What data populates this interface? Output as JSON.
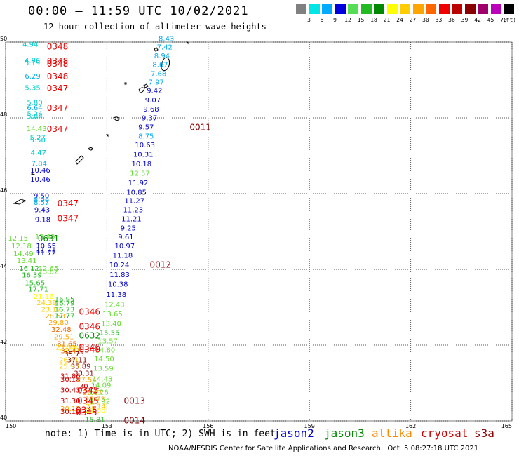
{
  "header": {
    "title": "00:00 – 11:59 UTC 10/02/2021",
    "subtitle": "12 hour collection of altimeter wave heights"
  },
  "colorbar": {
    "unit": "(ft)",
    "colors": [
      "#808080",
      "#00e5e5",
      "#00aaff",
      "#0000dd",
      "#55dd55",
      "#22bb22",
      "#008800",
      "#ffff00",
      "#ffcc00",
      "#ffa500",
      "#ff6600",
      "#ee0000",
      "#bb0000",
      "#880000",
      "#a0006a",
      "#bb00bb",
      "#000000"
    ],
    "labels": [
      "3",
      "6",
      "9",
      "12",
      "15",
      "18",
      "21",
      "24",
      "27",
      "30",
      "33",
      "36",
      "39",
      "42",
      "45",
      "70"
    ]
  },
  "axes": {
    "lon_labels": [
      "150",
      "153",
      "156",
      "159",
      "162",
      "165"
    ],
    "lat_labels": [
      "50",
      "48",
      "46",
      "44",
      "42",
      "40"
    ]
  },
  "series_colors": {
    "jason2": "#0000cc",
    "jason3": "#008800",
    "altika": "#ff8800",
    "cryosat": "#cc0000",
    "s3a": "#880000"
  },
  "observations": [
    {
      "t": "4.94",
      "c": "#00cccc",
      "lon": 150.5,
      "lat": 49.95
    },
    {
      "t": "4.86",
      "c": "#00cccc",
      "lon": 150.56,
      "lat": 49.53
    },
    {
      "t": "5.19",
      "c": "#00cccc",
      "lon": 150.56,
      "lat": 49.46
    },
    {
      "t": "6.29",
      "c": "#00aaee",
      "lon": 150.57,
      "lat": 49.11
    },
    {
      "t": "5.35",
      "c": "#00cccc",
      "lon": 150.57,
      "lat": 48.81
    },
    {
      "t": "5.80",
      "c": "#00cccc",
      "lon": 150.63,
      "lat": 48.42
    },
    {
      "t": "6.64",
      "c": "#00aaee",
      "lon": 150.63,
      "lat": 48.28
    },
    {
      "t": "5.26",
      "c": "#00cccc",
      "lon": 150.63,
      "lat": 48.12
    },
    {
      "t": "5.04",
      "c": "#00cccc",
      "lon": 150.63,
      "lat": 48.06
    },
    {
      "t": "14.43",
      "c": "#66dd33",
      "lon": 150.62,
      "lat": 47.72
    },
    {
      "t": "5.27",
      "c": "#00cccc",
      "lon": 150.72,
      "lat": 47.49
    },
    {
      "t": "5.50",
      "c": "#00cccc",
      "lon": 150.72,
      "lat": 47.43
    },
    {
      "t": "4.47",
      "c": "#00cccc",
      "lon": 150.74,
      "lat": 47.09
    },
    {
      "t": "7.84",
      "c": "#00aaee",
      "lon": 150.76,
      "lat": 46.81
    },
    {
      "t": "10.46",
      "c": "#0000cc",
      "lon": 150.73,
      "lat": 46.63
    },
    {
      "t": "10.46",
      "c": "#0000cc",
      "lon": 150.73,
      "lat": 46.39
    },
    {
      "t": "9.50",
      "c": "#0000cc",
      "lon": 150.83,
      "lat": 45.95
    },
    {
      "t": "8.06",
      "c": "#00aaee",
      "lon": 150.83,
      "lat": 45.85
    },
    {
      "t": "8.57",
      "c": "#00aaee",
      "lon": 150.83,
      "lat": 45.78
    },
    {
      "t": "9.43",
      "c": "#0000cc",
      "lon": 150.85,
      "lat": 45.58
    },
    {
      "t": "9.18",
      "c": "#0000cc",
      "lon": 150.87,
      "lat": 45.32
    },
    {
      "t": "12.15",
      "c": "#66dd33",
      "lon": 150.07,
      "lat": 44.83
    },
    {
      "t": "12.49",
      "c": "#66dd33",
      "lon": 150.87,
      "lat": 44.87
    },
    {
      "t": "12.18",
      "c": "#66dd33",
      "lon": 150.17,
      "lat": 44.63
    },
    {
      "t": "10.65",
      "c": "#0000cc",
      "lon": 150.9,
      "lat": 44.63
    },
    {
      "t": "11.71",
      "c": "#0000cc",
      "lon": 150.9,
      "lat": 44.53
    },
    {
      "t": "14.49",
      "c": "#66dd33",
      "lon": 150.23,
      "lat": 44.43
    },
    {
      "t": "11.72",
      "c": "#0000cc",
      "lon": 150.9,
      "lat": 44.44
    },
    {
      "t": "13.41",
      "c": "#66dd33",
      "lon": 150.33,
      "lat": 44.24
    },
    {
      "t": "16.12",
      "c": "#22bb22",
      "lon": 150.4,
      "lat": 44.04
    },
    {
      "t": "12.65",
      "c": "#66dd33",
      "lon": 150.97,
      "lat": 44.04
    },
    {
      "t": "16.39",
      "c": "#22bb22",
      "lon": 150.48,
      "lat": 43.86
    },
    {
      "t": "13.82",
      "c": "#66dd33",
      "lon": 150.97,
      "lat": 43.95
    },
    {
      "t": "15.65",
      "c": "#22bb22",
      "lon": 150.57,
      "lat": 43.66
    },
    {
      "t": "17.71",
      "c": "#22bb22",
      "lon": 150.67,
      "lat": 43.49
    },
    {
      "t": "21.16",
      "c": "#ffff00",
      "lon": 150.83,
      "lat": 43.3
    },
    {
      "t": "16.95",
      "c": "#22bb22",
      "lon": 151.45,
      "lat": 43.22
    },
    {
      "t": "24.39",
      "c": "#ffcc00",
      "lon": 150.92,
      "lat": 43.13
    },
    {
      "t": "16.79",
      "c": "#22bb22",
      "lon": 151.45,
      "lat": 43.12
    },
    {
      "t": "23.17",
      "c": "#ffcc00",
      "lon": 151.05,
      "lat": 42.95
    },
    {
      "t": "16.73",
      "c": "#22bb22",
      "lon": 151.45,
      "lat": 42.95
    },
    {
      "t": "28.58",
      "c": "#ffa500",
      "lon": 151.17,
      "lat": 42.78
    },
    {
      "t": "17.77",
      "c": "#22bb22",
      "lon": 151.45,
      "lat": 42.79
    },
    {
      "t": "29.80",
      "c": "#ffa500",
      "lon": 151.27,
      "lat": 42.61
    },
    {
      "t": "32.48",
      "c": "#ee6600",
      "lon": 151.35,
      "lat": 42.43
    },
    {
      "t": "29.51",
      "c": "#ffa500",
      "lon": 151.43,
      "lat": 42.23
    },
    {
      "t": "31.65",
      "c": "#ee6600",
      "lon": 151.52,
      "lat": 42.05
    },
    {
      "t": "25.50",
      "c": "#ffcc00",
      "lon": 151.48,
      "lat": 41.95
    },
    {
      "t": "23.85",
      "c": "#ffff00",
      "lon": 151.58,
      "lat": 41.92
    },
    {
      "t": "32.41",
      "c": "#ee6600",
      "lon": 151.63,
      "lat": 41.86
    },
    {
      "t": "35.73",
      "c": "#880000",
      "lon": 151.73,
      "lat": 41.78
    },
    {
      "t": "26.41",
      "c": "#ffcc00",
      "lon": 151.58,
      "lat": 41.62
    },
    {
      "t": "37.11",
      "c": "#880000",
      "lon": 151.82,
      "lat": 41.62
    },
    {
      "t": "25.93",
      "c": "#ffcc00",
      "lon": 151.58,
      "lat": 41.45
    },
    {
      "t": "35.89",
      "c": "#880000",
      "lon": 151.93,
      "lat": 41.45
    },
    {
      "t": "33.31",
      "c": "#880000",
      "lon": 152.02,
      "lat": 41.27
    },
    {
      "t": "31.86",
      "c": "#cc0000",
      "lon": 151.62,
      "lat": 41.19
    },
    {
      "t": "30.18",
      "c": "#cc0000",
      "lon": 151.62,
      "lat": 41.11
    },
    {
      "t": "27.54",
      "c": "#ffa500",
      "lon": 152.1,
      "lat": 41.1
    },
    {
      "t": "30.71",
      "c": "#cc0000",
      "lon": 152.18,
      "lat": 40.93
    },
    {
      "t": "30.43",
      "c": "#cc0000",
      "lon": 151.62,
      "lat": 40.82
    },
    {
      "t": "29.67",
      "c": "#ffa500",
      "lon": 152.27,
      "lat": 40.76
    },
    {
      "t": "31.30",
      "c": "#cc0000",
      "lon": 151.62,
      "lat": 40.54
    },
    {
      "t": "28.73",
      "c": "#ffa500",
      "lon": 152.35,
      "lat": 40.58
    },
    {
      "t": "30.12",
      "c": "#ffa500",
      "lon": 151.62,
      "lat": 40.33
    },
    {
      "t": "30.19",
      "c": "#cc0000",
      "lon": 151.62,
      "lat": 40.26
    },
    {
      "t": "27.14",
      "c": "#ffcc00",
      "lon": 152.37,
      "lat": 40.4
    },
    {
      "t": "21.55",
      "c": "#ffff00",
      "lon": 152.37,
      "lat": 40.3
    },
    {
      "t": "15.81",
      "c": "#22bb22",
      "lon": 152.35,
      "lat": 40.05
    },
    {
      "t": "14.26",
      "c": "#66dd33",
      "lon": 152.45,
      "lat": 40.77
    },
    {
      "t": "13.92",
      "c": "#66dd33",
      "lon": 152.5,
      "lat": 40.53
    },
    {
      "t": "14.09",
      "c": "#66dd33",
      "lon": 152.53,
      "lat": 40.95
    },
    {
      "t": "14.43",
      "c": "#66dd33",
      "lon": 152.57,
      "lat": 41.12
    },
    {
      "t": "13.59",
      "c": "#66dd33",
      "lon": 152.6,
      "lat": 41.4
    },
    {
      "t": "14.50",
      "c": "#66dd33",
      "lon": 152.62,
      "lat": 41.65
    },
    {
      "t": "14.80",
      "c": "#66dd33",
      "lon": 152.65,
      "lat": 41.88
    },
    {
      "t": "13.57",
      "c": "#66dd33",
      "lon": 152.73,
      "lat": 42.12
    },
    {
      "t": "15.55",
      "c": "#22bb22",
      "lon": 152.78,
      "lat": 42.34
    },
    {
      "t": "13.40",
      "c": "#66dd33",
      "lon": 152.83,
      "lat": 42.58
    },
    {
      "t": "13.65",
      "c": "#66dd33",
      "lon": 152.87,
      "lat": 42.83
    },
    {
      "t": "12.43",
      "c": "#66dd33",
      "lon": 152.93,
      "lat": 43.08
    },
    {
      "t": "11.38",
      "c": "#0000cc",
      "lon": 152.98,
      "lat": 43.35
    },
    {
      "t": "10.38",
      "c": "#0000cc",
      "lon": 153.03,
      "lat": 43.62
    },
    {
      "t": "11.83",
      "c": "#0000cc",
      "lon": 153.08,
      "lat": 43.87
    },
    {
      "t": "10.24",
      "c": "#0000cc",
      "lon": 153.07,
      "lat": 44.13
    },
    {
      "t": "11.18",
      "c": "#0000cc",
      "lon": 153.17,
      "lat": 44.38
    },
    {
      "t": "10.97",
      "c": "#0000cc",
      "lon": 153.23,
      "lat": 44.63
    },
    {
      "t": "9.61",
      "c": "#0000cc",
      "lon": 153.33,
      "lat": 44.87
    },
    {
      "t": "9.25",
      "c": "#0000cc",
      "lon": 153.4,
      "lat": 45.1
    },
    {
      "t": "11.21",
      "c": "#0000cc",
      "lon": 153.43,
      "lat": 45.34
    },
    {
      "t": "11.23",
      "c": "#0000cc",
      "lon": 153.48,
      "lat": 45.58
    },
    {
      "t": "11.27",
      "c": "#0000cc",
      "lon": 153.52,
      "lat": 45.82
    },
    {
      "t": "10.85",
      "c": "#0000cc",
      "lon": 153.58,
      "lat": 46.05
    },
    {
      "t": "11.92",
      "c": "#0000cc",
      "lon": 153.63,
      "lat": 46.3
    },
    {
      "t": "12.57",
      "c": "#66dd33",
      "lon": 153.68,
      "lat": 46.55
    },
    {
      "t": "10.18",
      "c": "#0000cc",
      "lon": 153.73,
      "lat": 46.8
    },
    {
      "t": "10.31",
      "c": "#0000cc",
      "lon": 153.78,
      "lat": 47.05
    },
    {
      "t": "10.63",
      "c": "#0000cc",
      "lon": 153.83,
      "lat": 47.3
    },
    {
      "t": "8.75",
      "c": "#00aaee",
      "lon": 153.93,
      "lat": 47.53
    },
    {
      "t": "9.57",
      "c": "#0000cc",
      "lon": 153.93,
      "lat": 47.77
    },
    {
      "t": "9.37",
      "c": "#0000cc",
      "lon": 154.03,
      "lat": 48.01
    },
    {
      "t": "9.68",
      "c": "#0000cc",
      "lon": 154.08,
      "lat": 48.24
    },
    {
      "t": "9.07",
      "c": "#0000cc",
      "lon": 154.13,
      "lat": 48.48
    },
    {
      "t": "9.42",
      "c": "#0000cc",
      "lon": 154.18,
      "lat": 48.73
    },
    {
      "t": "7.97",
      "c": "#00aaee",
      "lon": 154.23,
      "lat": 48.95
    },
    {
      "t": "7.68",
      "c": "#00aaee",
      "lon": 154.3,
      "lat": 49.18
    },
    {
      "t": "8.67",
      "c": "#00aaee",
      "lon": 154.35,
      "lat": 49.42
    },
    {
      "t": "8.94",
      "c": "#00aaee",
      "lon": 154.4,
      "lat": 49.65
    },
    {
      "t": "7.42",
      "c": "#00aaee",
      "lon": 154.48,
      "lat": 49.88
    },
    {
      "t": "8.43",
      "c": "#00aaee",
      "lon": 154.53,
      "lat": 50.1
    }
  ],
  "track_labels": [
    {
      "t": "0348",
      "c": "#ee0000",
      "lon": 151.22,
      "lat": 49.9
    },
    {
      "t": "0348",
      "c": "#ee0000",
      "lon": 151.22,
      "lat": 49.52
    },
    {
      "t": "0348",
      "c": "#ee0000",
      "lon": 151.22,
      "lat": 49.44
    },
    {
      "t": "0348",
      "c": "#ee0000",
      "lon": 151.22,
      "lat": 49.11
    },
    {
      "t": "0347",
      "c": "#ee0000",
      "lon": 151.22,
      "lat": 48.8
    },
    {
      "t": "0347",
      "c": "#ee0000",
      "lon": 151.22,
      "lat": 48.28
    },
    {
      "t": "0347",
      "c": "#ee0000",
      "lon": 151.22,
      "lat": 47.72
    },
    {
      "t": "0347",
      "c": "#ee0000",
      "lon": 151.53,
      "lat": 45.76
    },
    {
      "t": "0347",
      "c": "#ee0000",
      "lon": 151.53,
      "lat": 45.36
    },
    {
      "t": "0631",
      "c": "#008800",
      "lon": 150.95,
      "lat": 44.83
    },
    {
      "t": "0346",
      "c": "#ee0000",
      "lon": 152.17,
      "lat": 42.9
    },
    {
      "t": "0346",
      "c": "#ee0000",
      "lon": 152.17,
      "lat": 42.51
    },
    {
      "t": "0632",
      "c": "#008800",
      "lon": 152.17,
      "lat": 42.27
    },
    {
      "t": "0346",
      "c": "#ee0000",
      "lon": 152.17,
      "lat": 41.96
    },
    {
      "t": "0346",
      "c": "#ee0000",
      "lon": 152.17,
      "lat": 41.9
    },
    {
      "t": "0345",
      "c": "#ee0000",
      "lon": 152.12,
      "lat": 40.82
    },
    {
      "t": "0345",
      "c": "#ee0000",
      "lon": 152.12,
      "lat": 40.55
    },
    {
      "t": "0345",
      "c": "#ee0000",
      "lon": 152.08,
      "lat": 40.31
    },
    {
      "t": "0345",
      "c": "#ee0000",
      "lon": 152.08,
      "lat": 40.24
    },
    {
      "t": "0013",
      "c": "#880000",
      "lon": 153.5,
      "lat": 40.55
    },
    {
      "t": "0014",
      "c": "#880000",
      "lon": 153.5,
      "lat": 40.03
    },
    {
      "t": "0012",
      "c": "#880000",
      "lon": 154.27,
      "lat": 44.14
    },
    {
      "t": "0011",
      "c": "#880000",
      "lon": 155.45,
      "lat": 47.77
    }
  ],
  "note": "note: 1) Time is in UTC; 2) SWH is in feet",
  "legend": [
    "jason2",
    "jason3",
    "altika",
    "cryosat",
    "s3a"
  ],
  "credit": "NOAA/NESDIS Center for Satellite Applications and Research   Oct  5 08:27:18 UTC 2021"
}
